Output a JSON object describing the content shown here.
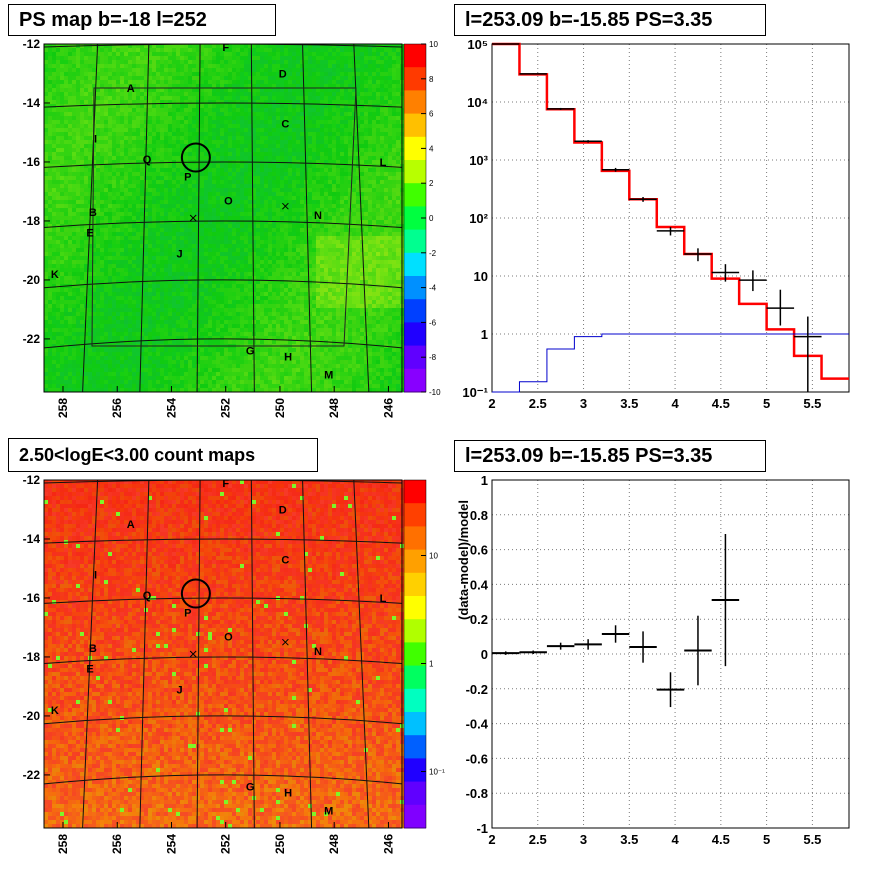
{
  "panels": {
    "ps_map": {
      "title": "PS map b=-18 l=252"
    },
    "count_map": {
      "title": "2.50<logE<3.00 count maps"
    },
    "spectrum": {
      "title": "l=253.09 b=-15.85 PS=3.35"
    },
    "residual": {
      "title": "l=253.09 b=-15.85 PS=3.35"
    }
  },
  "colors": {
    "data": "#000000",
    "model": "#ff0000",
    "background_model": "#0000cc",
    "grid": "#7a7a7a"
  },
  "chart_data": [
    {
      "type": "heatmap",
      "id": "ps_map",
      "title": "PS map b=-18 l=252",
      "xlabel": "",
      "ylabel": "",
      "x_ticks": [
        "258",
        "256",
        "254",
        "252",
        "250",
        "248",
        "246"
      ],
      "y_ticks": [
        "-12",
        "-14",
        "-16",
        "-18",
        "-20",
        "-22"
      ],
      "xlim": [
        258.7,
        245.5
      ],
      "ylim": [
        -23.8,
        -12
      ],
      "colorbar": {
        "scale": "linear",
        "range": [
          -10,
          10
        ],
        "ticks": [
          "10",
          "8",
          "6",
          "4",
          "2",
          "0",
          "-2",
          "-4",
          "-6",
          "-8",
          "-10"
        ]
      },
      "dominant_value": 0,
      "sources": [
        {
          "label": "F",
          "l": 252.0,
          "b": -12.1
        },
        {
          "label": "D",
          "l": 249.9,
          "b": -13.0
        },
        {
          "label": "A",
          "l": 255.5,
          "b": -13.5
        },
        {
          "label": "C",
          "l": 249.8,
          "b": -14.7
        },
        {
          "label": "I",
          "l": 256.8,
          "b": -15.2
        },
        {
          "label": "Q",
          "l": 254.9,
          "b": -15.9
        },
        {
          "label": "L",
          "l": 246.2,
          "b": -16.0
        },
        {
          "label": "P",
          "l": 253.4,
          "b": -16.5
        },
        {
          "label": "O",
          "l": 251.9,
          "b": -17.3
        },
        {
          "label": "B",
          "l": 256.9,
          "b": -17.7
        },
        {
          "label": "N",
          "l": 248.6,
          "b": -17.8
        },
        {
          "label": "E",
          "l": 257.0,
          "b": -18.4
        },
        {
          "label": "J",
          "l": 253.7,
          "b": -19.1
        },
        {
          "label": "K",
          "l": 258.3,
          "b": -19.8
        },
        {
          "label": "G",
          "l": 251.1,
          "b": -22.4
        },
        {
          "label": "H",
          "l": 249.7,
          "b": -22.6
        },
        {
          "label": "M",
          "l": 248.2,
          "b": -23.2
        }
      ],
      "marker_circle": {
        "l": 253.1,
        "b": -15.85
      },
      "crosses": [
        {
          "l": 253.2,
          "b": -17.9
        },
        {
          "l": 249.8,
          "b": -17.5
        }
      ]
    },
    {
      "type": "heatmap",
      "id": "count_map",
      "title": "2.50<logE<3.00 count maps",
      "xlabel": "",
      "ylabel": "",
      "x_ticks": [
        "258",
        "256",
        "254",
        "252",
        "250",
        "248",
        "246"
      ],
      "y_ticks": [
        "-12",
        "-14",
        "-16",
        "-18",
        "-20",
        "-22"
      ],
      "xlim": [
        258.7,
        245.5
      ],
      "ylim": [
        -23.8,
        -12
      ],
      "colorbar": {
        "scale": "log",
        "range": [
          0.03,
          50
        ],
        "ticks": [
          "10",
          "1",
          "10⁻¹"
        ]
      },
      "sources": [
        {
          "label": "F",
          "l": 252.0,
          "b": -12.1
        },
        {
          "label": "D",
          "l": 249.9,
          "b": -13.0
        },
        {
          "label": "A",
          "l": 255.5,
          "b": -13.5
        },
        {
          "label": "C",
          "l": 249.8,
          "b": -14.7
        },
        {
          "label": "I",
          "l": 256.8,
          "b": -15.2
        },
        {
          "label": "Q",
          "l": 254.9,
          "b": -15.9
        },
        {
          "label": "L",
          "l": 246.2,
          "b": -16.0
        },
        {
          "label": "P",
          "l": 253.4,
          "b": -16.5
        },
        {
          "label": "O",
          "l": 251.9,
          "b": -17.3
        },
        {
          "label": "B",
          "l": 256.9,
          "b": -17.7
        },
        {
          "label": "N",
          "l": 248.6,
          "b": -17.8
        },
        {
          "label": "E",
          "l": 257.0,
          "b": -18.4
        },
        {
          "label": "J",
          "l": 253.7,
          "b": -19.1
        },
        {
          "label": "K",
          "l": 258.3,
          "b": -19.8
        },
        {
          "label": "G",
          "l": 251.1,
          "b": -22.4
        },
        {
          "label": "H",
          "l": 249.7,
          "b": -22.6
        },
        {
          "label": "M",
          "l": 248.2,
          "b": -23.2
        }
      ],
      "marker_circle": {
        "l": 253.1,
        "b": -15.85
      },
      "crosses": [
        {
          "l": 253.2,
          "b": -17.9
        },
        {
          "l": 249.8,
          "b": -17.5
        }
      ]
    },
    {
      "type": "line",
      "id": "spectrum",
      "title": "l=253.09 b=-15.85 PS=3.35",
      "xlabel": "",
      "ylabel": "",
      "xlim": [
        2,
        5.9
      ],
      "ylim": [
        0.1,
        100000
      ],
      "y_scale": "log",
      "grid": true,
      "x_ticks": [
        "2",
        "2.5",
        "3",
        "3.5",
        "4",
        "4.5",
        "5",
        "5.5"
      ],
      "y_ticks": [
        "10⁻¹",
        "1",
        "10",
        "10²",
        "10³",
        "10⁴",
        "10⁵"
      ],
      "bin_edges": [
        2.0,
        2.3,
        2.6,
        2.9,
        3.2,
        3.5,
        3.8,
        4.1,
        4.4,
        4.7,
        5.0,
        5.3,
        5.6,
        5.9
      ],
      "series": [
        {
          "style": "step",
          "color_key": "model",
          "values": [
            100000,
            30000,
            7500,
            2000,
            650,
            210,
            70,
            24,
            9,
            3.3,
            1.2,
            0.42,
            0.17
          ]
        },
        {
          "style": "step",
          "color_key": "background_model",
          "values": [
            0.1,
            0.15,
            0.55,
            0.9,
            1.0,
            1.0,
            1.0,
            1.0,
            1.0,
            1.0,
            1.0,
            1.0,
            1.0
          ]
        },
        {
          "style": "errorbar",
          "color_key": "data",
          "points": [
            {
              "x": 2.15,
              "y": 100000,
              "xerr": 0.15,
              "ylo": 98000,
              "yhi": 102000
            },
            {
              "x": 2.45,
              "y": 30500,
              "xerr": 0.15,
              "ylo": 29800,
              "yhi": 31200
            },
            {
              "x": 2.75,
              "y": 7600,
              "xerr": 0.15,
              "ylo": 7300,
              "yhi": 7900
            },
            {
              "x": 3.05,
              "y": 2100,
              "xerr": 0.15,
              "ylo": 2000,
              "yhi": 2200
            },
            {
              "x": 3.35,
              "y": 680,
              "xerr": 0.15,
              "ylo": 630,
              "yhi": 730
            },
            {
              "x": 3.65,
              "y": 210,
              "xerr": 0.15,
              "ylo": 190,
              "yhi": 230
            },
            {
              "x": 3.95,
              "y": 60,
              "xerr": 0.15,
              "ylo": 50,
              "yhi": 70
            },
            {
              "x": 4.25,
              "y": 24,
              "xerr": 0.15,
              "ylo": 18,
              "yhi": 30
            },
            {
              "x": 4.55,
              "y": 11.5,
              "xerr": 0.15,
              "ylo": 8,
              "yhi": 16
            },
            {
              "x": 4.85,
              "y": 8.5,
              "xerr": 0.15,
              "ylo": 5.5,
              "yhi": 12.5
            },
            {
              "x": 5.15,
              "y": 2.8,
              "xerr": 0.15,
              "ylo": 1.4,
              "yhi": 5.8
            },
            {
              "x": 5.45,
              "y": 0.9,
              "xerr": 0.15,
              "ylo": 0.1,
              "yhi": 2.0
            }
          ]
        }
      ]
    },
    {
      "type": "scatter",
      "id": "residual",
      "title": "l=253.09 b=-15.85 PS=3.35",
      "xlabel": "",
      "ylabel": "(data-model)/model",
      "xlim": [
        2,
        5.9
      ],
      "ylim": [
        -1,
        1
      ],
      "grid": true,
      "x_ticks": [
        "2",
        "2.5",
        "3",
        "3.5",
        "4",
        "4.5",
        "5",
        "5.5"
      ],
      "y_ticks": [
        "1",
        "0.8",
        "0.6",
        "0.4",
        "0.2",
        "0",
        "-0.2",
        "-0.4",
        "-0.6",
        "-0.8",
        "-1"
      ],
      "points": [
        {
          "x": 2.15,
          "y": 0.005,
          "xerr": 0.15,
          "yerr": 0.01
        },
        {
          "x": 2.45,
          "y": 0.01,
          "xerr": 0.15,
          "yerr": 0.01
        },
        {
          "x": 2.75,
          "y": 0.045,
          "xerr": 0.15,
          "yerr": 0.02
        },
        {
          "x": 3.05,
          "y": 0.055,
          "xerr": 0.15,
          "yerr": 0.03
        },
        {
          "x": 3.35,
          "y": 0.115,
          "xerr": 0.15,
          "yerr": 0.05
        },
        {
          "x": 3.65,
          "y": 0.04,
          "xerr": 0.15,
          "yerr": 0.09
        },
        {
          "x": 3.95,
          "y": -0.205,
          "xerr": 0.15,
          "yerr": 0.1
        },
        {
          "x": 4.25,
          "y": 0.02,
          "xerr": 0.15,
          "yerr": 0.2
        },
        {
          "x": 4.55,
          "y": 0.31,
          "xerr": 0.15,
          "yerr": 0.38
        }
      ]
    }
  ]
}
